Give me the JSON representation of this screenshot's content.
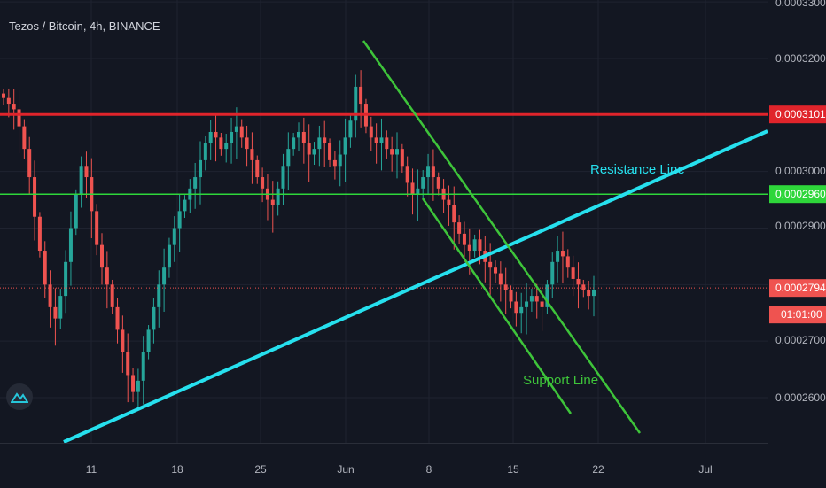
{
  "header": {
    "title": "Tezos / Bitcoin, 4h, BINANCE"
  },
  "colors": {
    "background": "#131722",
    "grid": "#1f2330",
    "up": "#26a69a",
    "down": "#ef5350",
    "resistance_horizontal": "#e0242b",
    "support_horizontal": "#2ed63a",
    "trend_line": "#26e0ee",
    "channel": "#3ec43a",
    "axis_text": "#b2b5be"
  },
  "chart_data": {
    "type": "candlestick",
    "title": "Tezos / Bitcoin, 4h, BINANCE",
    "xlabel": "",
    "ylabel": "",
    "ylim": [
      0.000254,
      0.000331
    ],
    "grid": true,
    "x_ticks": [
      "11",
      "18",
      "25",
      "Jun",
      "8",
      "15",
      "22",
      "Jul"
    ],
    "y_ticks": [
      "0.0003300",
      "0.0003200",
      "0.0003000",
      "0.0002900",
      "0.0002700",
      "0.0002600"
    ],
    "price_labels": [
      {
        "label": "0.0003101",
        "value": 0.0003101,
        "color": "#e0242b"
      },
      {
        "label": "0.0002960",
        "value": 0.000296,
        "color": "#2ed63a"
      },
      {
        "label": "0.0002794",
        "value": 0.0002794,
        "color": "#ef5350"
      }
    ],
    "countdown": "01:01:00",
    "horizontal_lines": [
      {
        "value": 0.0003101,
        "color": "#e0242b"
      },
      {
        "value": 0.000296,
        "color": "#2ed63a"
      },
      {
        "value": 0.0002794,
        "color": "#ef5350",
        "dotted": true
      }
    ],
    "annotations": [
      {
        "text": "Resistance Line",
        "color": "#26e0ee"
      },
      {
        "text": "Support Line",
        "color": "#3ec43a"
      }
    ],
    "candles_close": [
      0.000313,
      0.000312,
      0.000311,
      0.000308,
      0.000304,
      0.000299,
      0.000292,
      0.000286,
      0.00028,
      0.000276,
      0.000274,
      0.000278,
      0.000284,
      0.00029,
      0.000296,
      0.000301,
      0.000299,
      0.000293,
      0.000287,
      0.000283,
      0.00028,
      0.000276,
      0.000272,
      0.000268,
      0.000264,
      0.000261,
      0.000263,
      0.000268,
      0.000272,
      0.000276,
      0.00028,
      0.000283,
      0.000287,
      0.00029,
      0.000293,
      0.000295,
      0.000297,
      0.000299,
      0.000302,
      0.000305,
      0.000307,
      0.000306,
      0.000304,
      0.000305,
      0.000307,
      0.000308,
      0.000306,
      0.000304,
      0.000302,
      0.000299,
      0.000297,
      0.000295,
      0.000294,
      0.000297,
      0.000301,
      0.000304,
      0.000306,
      0.000307,
      0.000305,
      0.000303,
      0.000304,
      0.000306,
      0.000305,
      0.000302,
      0.000301,
      0.000303,
      0.000306,
      0.000309,
      0.000315,
      0.000312,
      0.000308,
      0.000306,
      0.000305,
      0.000306,
      0.000304,
      0.000303,
      0.000304,
      0.000301,
      0.000298,
      0.000296,
      0.000297,
      0.000299,
      0.000301,
      0.000299,
      0.000297,
      0.000295,
      0.000294,
      0.000291,
      0.000289,
      0.000287,
      0.000286,
      0.000288,
      0.000286,
      0.000284,
      0.000283,
      0.000282,
      0.00028,
      0.000279,
      0.000277,
      0.000275,
      0.000276,
      0.000277,
      0.000278,
      0.000277,
      0.000276,
      0.00028,
      0.000284,
      0.000286,
      0.000285,
      0.000283,
      0.000281,
      0.00028,
      0.000279,
      0.000278,
      0.000279
    ]
  }
}
